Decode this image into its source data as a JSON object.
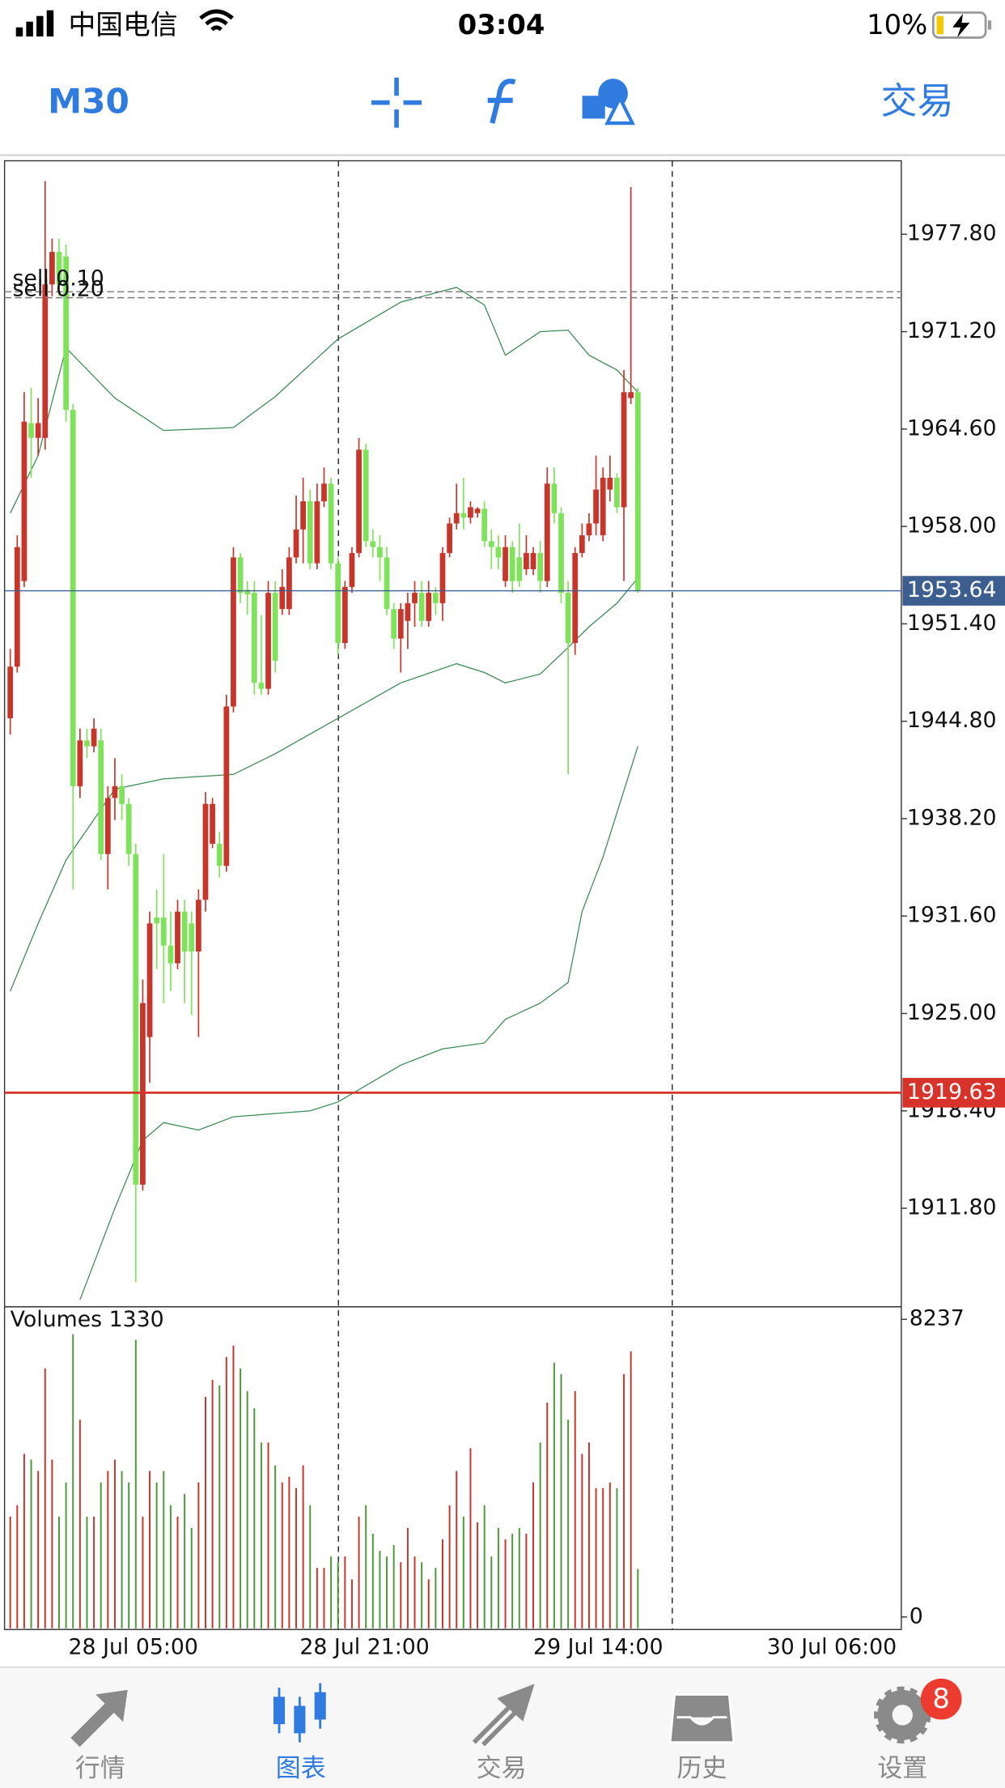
{
  "status_bar": {
    "carrier": "中国电信",
    "time": "03:04",
    "battery": "10%"
  },
  "toolbar": {
    "timeframe": "M30",
    "trade": "交易"
  },
  "tabs": [
    {
      "label": "行情"
    },
    {
      "label": "图表",
      "active": true
    },
    {
      "label": "交易"
    },
    {
      "label": "历史"
    },
    {
      "label": "设置",
      "badge": "8"
    }
  ],
  "chart_data": {
    "type": "candlestick",
    "up_color": "#c8352b",
    "down_color": "#7ee35a",
    "open": [
      1945.0,
      1948.5,
      1954.3,
      1965.0,
      1964.0,
      1964.0,
      1974.4,
      1976.6,
      1976.3,
      1965.9,
      1940.4,
      1943.5,
      1943.1,
      1943.5,
      1935.8,
      1939.6,
      1940.4,
      1939.2,
      1935.8,
      1913.4,
      1923.4,
      1931.5,
      1931.5,
      1929.6,
      1928.4,
      1931.9,
      1931.1,
      1929.2,
      1932.7,
      1936.5,
      1936.5,
      1935.0,
      1945.8,
      1955.9,
      1953.7,
      1953.5,
      1947.4,
      1947.0,
      1953.5,
      1952.4,
      1952.4,
      1955.9,
      1957.8,
      1959.7,
      1955.5,
      1959.7,
      1960.9,
      1955.5,
      1950.1,
      1953.9,
      1956.2,
      1963.2,
      1957.0,
      1956.6,
      1955.9,
      1952.4,
      1950.4,
      1951.6,
      1952.8,
      1953.5,
      1951.6,
      1953.5,
      1952.8,
      1956.2,
      1958.2,
      1958.9,
      1958.6,
      1958.9,
      1959.2,
      1957.0,
      1956.6,
      1954.3,
      1956.6,
      1955.9,
      1955.1,
      1955.1,
      1956.2,
      1954.3,
      1960.9,
      1958.9,
      1953.5,
      1950.1,
      1956.2,
      1957.4,
      1958.2,
      1957.4,
      1960.5,
      1961.3,
      1959.3,
      1966.7,
      1967.1
    ],
    "high": [
      1949.7,
      1957.4,
      1967.1,
      1967.4,
      1966.7,
      1981.4,
      1977.5,
      1977.5,
      1977.1,
      1966.3,
      1944.3,
      1944.3,
      1945.0,
      1944.3,
      1940.4,
      1942.3,
      1941.2,
      1939.6,
      1936.5,
      1927.3,
      1931.9,
      1933.4,
      1935.8,
      1931.9,
      1932.7,
      1932.7,
      1931.9,
      1933.4,
      1940.0,
      1939.6,
      1937.3,
      1946.6,
      1956.6,
      1956.2,
      1954.3,
      1954.3,
      1952.0,
      1954.3,
      1954.3,
      1955.1,
      1956.6,
      1960.1,
      1961.3,
      1960.5,
      1960.9,
      1962.0,
      1961.3,
      1955.9,
      1954.3,
      1956.6,
      1964.0,
      1963.6,
      1957.8,
      1957.4,
      1956.6,
      1952.8,
      1952.8,
      1953.5,
      1954.3,
      1954.3,
      1954.3,
      1953.9,
      1956.6,
      1958.6,
      1960.9,
      1961.3,
      1959.7,
      1959.3,
      1959.7,
      1957.8,
      1957.4,
      1957.4,
      1957.0,
      1958.2,
      1957.4,
      1956.6,
      1957.0,
      1962.0,
      1962.0,
      1959.3,
      1954.3,
      1956.6,
      1958.2,
      1958.9,
      1962.8,
      1962.0,
      1962.8,
      1961.6,
      1968.6,
      1981.0,
      1967.4
    ],
    "low": [
      1943.9,
      1948.1,
      1953.9,
      1961.3,
      1962.8,
      1963.2,
      1973.6,
      1973.6,
      1965.1,
      1933.4,
      1939.6,
      1942.3,
      1942.7,
      1935.4,
      1933.4,
      1938.1,
      1938.1,
      1935.0,
      1906.8,
      1913.0,
      1920.3,
      1928.0,
      1925.7,
      1926.5,
      1928.0,
      1925.7,
      1924.9,
      1923.4,
      1931.9,
      1936.2,
      1934.2,
      1934.6,
      1945.4,
      1952.8,
      1952.0,
      1946.6,
      1946.6,
      1946.6,
      1948.1,
      1952.0,
      1952.0,
      1955.5,
      1955.5,
      1955.1,
      1955.1,
      1959.3,
      1955.1,
      1949.3,
      1949.7,
      1953.5,
      1955.9,
      1956.6,
      1955.9,
      1954.3,
      1952.0,
      1949.7,
      1948.1,
      1949.7,
      1951.2,
      1951.2,
      1951.2,
      1952.0,
      1951.6,
      1955.9,
      1957.8,
      1957.8,
      1958.2,
      1958.6,
      1956.6,
      1955.1,
      1955.1,
      1953.9,
      1953.5,
      1953.9,
      1954.7,
      1954.7,
      1953.5,
      1953.9,
      1958.2,
      1952.8,
      1941.2,
      1949.3,
      1955.9,
      1957.0,
      1957.4,
      1957.0,
      1959.7,
      1958.9,
      1954.3,
      1966.3,
      1953.5
    ],
    "close": [
      1948.5,
      1956.6,
      1965.1,
      1964.0,
      1965.0,
      1974.4,
      1976.6,
      1974.4,
      1965.9,
      1940.4,
      1943.5,
      1943.1,
      1944.3,
      1935.8,
      1939.6,
      1940.4,
      1939.2,
      1935.8,
      1913.4,
      1925.7,
      1931.1,
      1931.1,
      1929.6,
      1928.4,
      1931.9,
      1929.2,
      1929.2,
      1932.7,
      1939.2,
      1939.2,
      1935.0,
      1945.8,
      1955.9,
      1953.5,
      1953.4,
      1947.4,
      1947.0,
      1953.5,
      1948.9,
      1953.9,
      1955.9,
      1957.8,
      1959.7,
      1955.5,
      1959.7,
      1960.9,
      1955.5,
      1950.1,
      1953.9,
      1956.2,
      1963.2,
      1957.0,
      1956.6,
      1955.9,
      1952.4,
      1950.4,
      1952.4,
      1952.8,
      1953.5,
      1951.6,
      1953.5,
      1952.8,
      1956.2,
      1958.2,
      1958.9,
      1958.6,
      1959.3,
      1959.2,
      1957.0,
      1956.6,
      1955.9,
      1956.6,
      1954.3,
      1954.3,
      1956.2,
      1956.2,
      1954.3,
      1960.9,
      1958.9,
      1953.5,
      1950.1,
      1956.2,
      1957.4,
      1958.2,
      1960.5,
      1961.3,
      1961.3,
      1959.3,
      1967.1,
      1967.1,
      1953.64
    ],
    "ylim": [
      1905.2,
      1982.7
    ],
    "yticks": [
      {
        "value": 1977.8,
        "label": "1977.80"
      },
      {
        "value": 1971.2,
        "label": "1971.20"
      },
      {
        "value": 1964.6,
        "label": "1964.60"
      },
      {
        "value": 1958.0,
        "label": "1958.00"
      },
      {
        "value": 1951.4,
        "label": "1951.40"
      },
      {
        "value": 1944.8,
        "label": "1944.80"
      },
      {
        "value": 1938.2,
        "label": "1938.20"
      },
      {
        "value": 1931.6,
        "label": "1931.60"
      },
      {
        "value": 1925.0,
        "label": "1925.00"
      },
      {
        "value": 1918.4,
        "label": "1918.40"
      },
      {
        "value": 1911.8,
        "label": "1911.80"
      }
    ],
    "bands": [
      {
        "color": "#3c8a55",
        "x": [
          0,
          4,
          8,
          15,
          22,
          32,
          38,
          47,
          56,
          64,
          68,
          71,
          76,
          80,
          83,
          87,
          90
        ],
        "values": [
          1958.9,
          1962.8,
          1970.1,
          1966.7,
          1964.5,
          1964.7,
          1966.8,
          1970.7,
          1973.2,
          1974.2,
          1973.0,
          1969.6,
          1971.2,
          1971.3,
          1969.6,
          1968.6,
          1967.1
        ]
      },
      {
        "color": "#3c8a55",
        "x": [
          0,
          4,
          8,
          15,
          22,
          32,
          38,
          47,
          56,
          64,
          68,
          71,
          76,
          80,
          83,
          87,
          90
        ],
        "values": [
          1926.5,
          1931.1,
          1935.4,
          1940.2,
          1940.9,
          1941.2,
          1942.6,
          1945.0,
          1947.4,
          1948.7,
          1948.1,
          1947.4,
          1948.0,
          1949.8,
          1951.2,
          1952.8,
          1954.5
        ]
      },
      {
        "color": "#3c8a55",
        "x": [
          10,
          15,
          19,
          22,
          27,
          32,
          43,
          47,
          56,
          62,
          68,
          71,
          76,
          80,
          82,
          85,
          90
        ],
        "values": [
          1905.6,
          1911.8,
          1916.4,
          1917.6,
          1917.1,
          1918.0,
          1918.4,
          1919.0,
          1921.5,
          1922.6,
          1923.0,
          1924.6,
          1925.7,
          1927.1,
          1931.9,
          1935.6,
          1943.1
        ]
      }
    ],
    "price_lines": [
      {
        "value": 1953.64,
        "color": "#3d5f8f"
      },
      {
        "value": 1919.63,
        "color": "#d8332b"
      }
    ],
    "orders": [
      {
        "label": "sell 0.10",
        "value": 1973.9
      },
      {
        "label": "sell 0.20",
        "value": 1973.5
      }
    ],
    "x_labels": [
      "28 Jul 05:00",
      "28 Jul 21:00",
      "29 Jul 14:00",
      "30 Jul 06:00"
    ],
    "volume": {
      "title": "Volumes 1330",
      "ylim": [
        0,
        8237
      ],
      "yticks": [
        8237,
        0
      ],
      "values": [
        2777,
        3093,
        4513,
        4355,
        4040,
        6880,
        4355,
        2777,
        3724,
        7827,
        5460,
        2777,
        2777,
        3724,
        4040,
        4355,
        4040,
        3724,
        7669,
        2777,
        4040,
        3724,
        4040,
        3093,
        2777,
        3408,
        2462,
        3724,
        6091,
        6564,
        6407,
        7196,
        7511,
        6880,
        6249,
        5775,
        4829,
        4829,
        4197,
        3724,
        3882,
        3566,
        4197,
        3093,
        1357,
        1357,
        1673,
        1515,
        1673,
        1041,
        2777,
        3093,
        2304,
        1830,
        1673,
        1988,
        1515,
        2462,
        1673,
        1515,
        1041,
        1357,
        2146,
        3093,
        4040,
        2777,
        4671,
        2619,
        3093,
        1673,
        2462,
        2146,
        2304,
        2462,
        2304,
        3724,
        4829,
        5933,
        7038,
        6722,
        5460,
        6249,
        4513,
        4829,
        3566,
        3566,
        3724,
        3566,
        6722,
        7353,
        1330
      ]
    }
  }
}
